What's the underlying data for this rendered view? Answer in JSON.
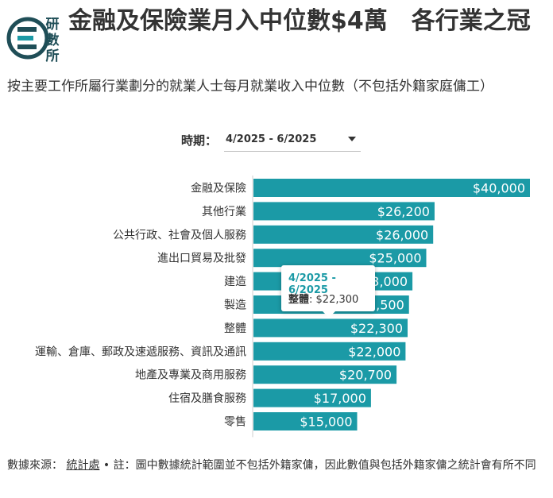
{
  "header": {
    "logo_text": [
      "研",
      "數",
      "所"
    ],
    "title": "金融及保險業月入中位數$4萬　各行業之冠",
    "subtitle": "按主要工作所屬行業劃分的就業人士每月就業收入中位數（不包括外籍家庭傭工）"
  },
  "filter": {
    "label": "時期：",
    "selected": "4/2025 - 6/2025"
  },
  "tooltip": {
    "period": "4/2025 - 6/2025",
    "series": "整體",
    "value": "$22,300"
  },
  "footer": {
    "source_prefix": "數據來源：",
    "source_link": "統計處",
    "note": "• 註：圖中數據統計範圍並不包括外籍家傭，因此數值與包括外籍家傭之統計會有所不同"
  },
  "colors": {
    "bar": "#1b9aa6",
    "logo_dark": "#1f4e57",
    "logo_teal": "#1b9aa6"
  },
  "chart_data": {
    "type": "bar",
    "orientation": "horizontal",
    "categories": [
      "金融及保險",
      "其他行業",
      "公共行政、社會及個人服務",
      "進出口貿易及批發",
      "建造",
      "製造",
      "整體",
      "運輸、倉庫、郵政及速遞服務、資訊及通訊",
      "地產及專業及商用服務",
      "住宿及膳食服務",
      "零售"
    ],
    "values": [
      40000,
      26200,
      26000,
      25000,
      23000,
      22500,
      22300,
      22000,
      20700,
      17000,
      15000
    ],
    "data_labels": [
      "$40,000",
      "$26,200",
      "$26,000",
      "$25,000",
      "$23,000",
      "$22,500",
      "$22,300",
      "$22,000",
      "$20,700",
      "$17,000",
      "$15,000"
    ],
    "xlim": [
      0,
      40000
    ]
  }
}
